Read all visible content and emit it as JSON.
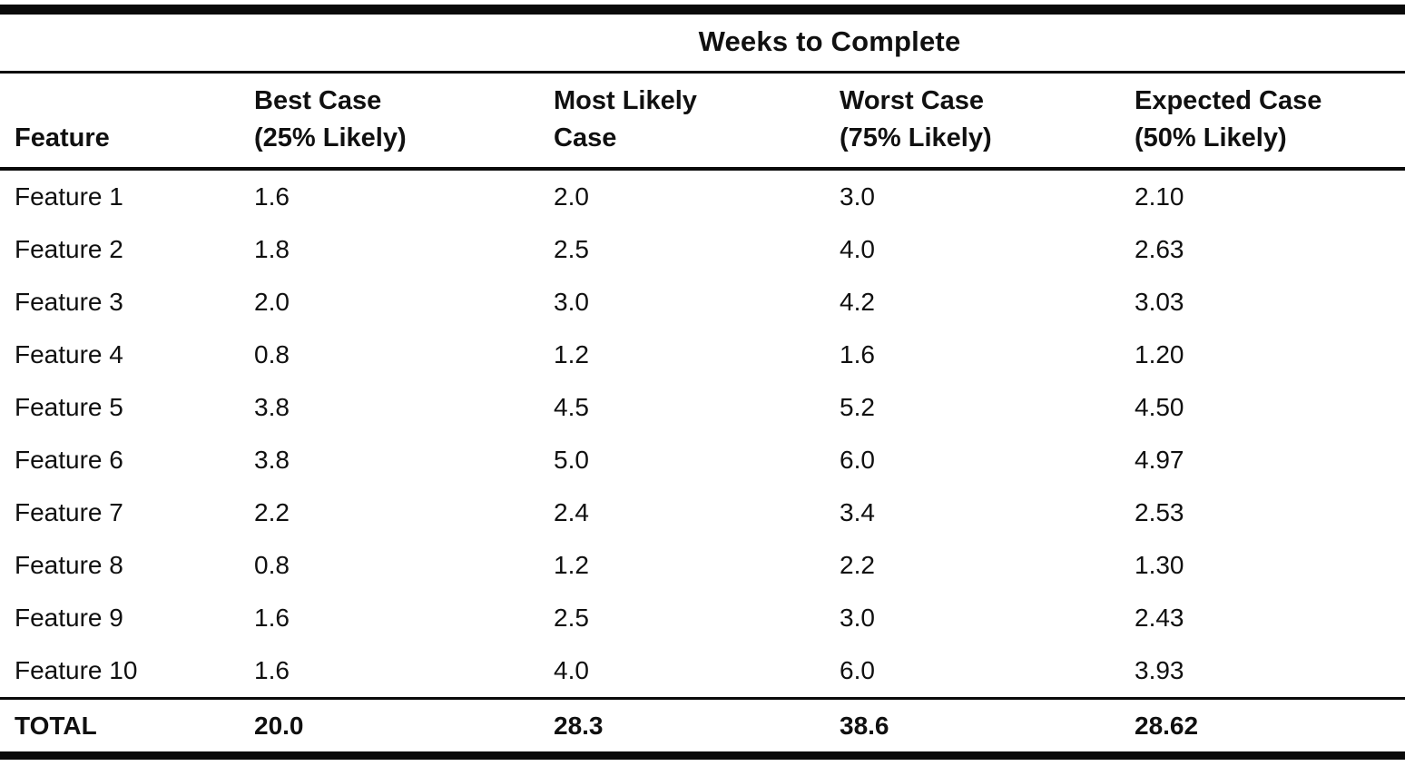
{
  "page": {
    "background_color": "#ffffff",
    "text_color": "#101010",
    "rule_color": "#0a0a0a"
  },
  "table": {
    "spanning_header": "Weeks to Complete",
    "columns": [
      {
        "label": "Feature"
      },
      {
        "label": "Best Case\n(25% Likely)"
      },
      {
        "label": "Most Likely\nCase"
      },
      {
        "label": "Worst Case\n(75% Likely)"
      },
      {
        "label": "Expected Case\n(50% Likely)"
      }
    ],
    "rows": [
      {
        "feature": "Feature 1",
        "values": [
          "1.6",
          "2.0",
          "3.0",
          "2.10"
        ]
      },
      {
        "feature": "Feature 2",
        "values": [
          "1.8",
          "2.5",
          "4.0",
          "2.63"
        ]
      },
      {
        "feature": "Feature 3",
        "values": [
          "2.0",
          "3.0",
          "4.2",
          "3.03"
        ]
      },
      {
        "feature": "Feature 4",
        "values": [
          "0.8",
          "1.2",
          "1.6",
          "1.20"
        ]
      },
      {
        "feature": "Feature 5",
        "values": [
          "3.8",
          "4.5",
          "5.2",
          "4.50"
        ]
      },
      {
        "feature": "Feature 6",
        "values": [
          "3.8",
          "5.0",
          "6.0",
          "4.97"
        ]
      },
      {
        "feature": "Feature 7",
        "values": [
          "2.2",
          "2.4",
          "3.4",
          "2.53"
        ]
      },
      {
        "feature": "Feature 8",
        "values": [
          "0.8",
          "1.2",
          "2.2",
          "1.30"
        ]
      },
      {
        "feature": "Feature 9",
        "values": [
          "1.6",
          "2.5",
          "3.0",
          "2.43"
        ]
      },
      {
        "feature": "Feature 10",
        "values": [
          "1.6",
          "4.0",
          "6.0",
          "3.93"
        ]
      }
    ],
    "total": {
      "label": "TOTAL",
      "values": [
        "20.0",
        "28.3",
        "38.6",
        "28.62"
      ]
    }
  }
}
